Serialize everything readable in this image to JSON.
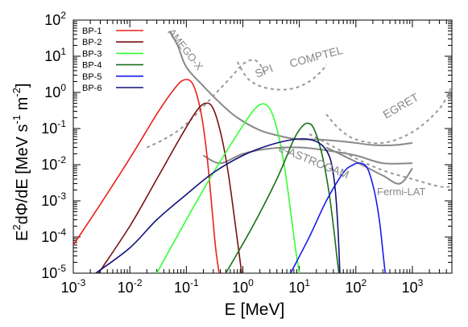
{
  "chart_data": {
    "type": "line",
    "xlabel": "E [MeV]",
    "ylabel_parts": [
      "E",
      "2",
      "dΦ/dE [MeV s",
      "-1",
      " m",
      "-2",
      "]"
    ],
    "xscale": "log",
    "yscale": "log",
    "xlim": [
      0.001,
      5000
    ],
    "ylim": [
      1e-05,
      100
    ],
    "x_ticks": [
      {
        "base": "10",
        "exp": "-3",
        "value": 0.001
      },
      {
        "base": "10",
        "exp": "-2",
        "value": 0.01
      },
      {
        "base": "10",
        "exp": "-1",
        "value": 0.1
      },
      {
        "base": "10",
        "exp": "0",
        "value": 1
      },
      {
        "base": "10",
        "exp": "1",
        "value": 10
      },
      {
        "base": "10",
        "exp": "2",
        "value": 100
      },
      {
        "base": "10",
        "exp": "3",
        "value": 1000
      }
    ],
    "y_ticks": [
      {
        "base": "10",
        "exp": "-5",
        "value": 1e-05
      },
      {
        "base": "10",
        "exp": "-4",
        "value": 0.0001
      },
      {
        "base": "10",
        "exp": "-3",
        "value": 0.001
      },
      {
        "base": "10",
        "exp": "-2",
        "value": 0.01
      },
      {
        "base": "10",
        "exp": "-1",
        "value": 0.1
      },
      {
        "base": "10",
        "exp": "0",
        "value": 1
      },
      {
        "base": "10",
        "exp": "1",
        "value": 10
      },
      {
        "base": "10",
        "exp": "2",
        "value": 100
      }
    ],
    "legend_position": "top-left",
    "series": [
      {
        "name": "BP-1",
        "color": "#e8221a",
        "x": [
          0.001,
          0.003,
          0.01,
          0.03,
          0.06,
          0.09,
          0.13,
          0.18,
          0.23,
          0.28,
          0.33,
          0.38
        ],
        "y": [
          6e-05,
          0.0008,
          0.015,
          0.25,
          1.2,
          2.2,
          1.7,
          0.3,
          0.02,
          0.0008,
          5e-05,
          1e-05
        ]
      },
      {
        "name": "BP-2",
        "color": "#7a1010",
        "x": [
          0.0028,
          0.01,
          0.03,
          0.08,
          0.15,
          0.22,
          0.3,
          0.42,
          0.55,
          0.7,
          0.85,
          0.95
        ],
        "y": [
          1e-05,
          0.0002,
          0.004,
          0.06,
          0.3,
          0.5,
          0.35,
          0.06,
          0.006,
          0.0004,
          4e-05,
          1e-05
        ]
      },
      {
        "name": "BP-3",
        "color": "#33ff33",
        "x": [
          0.03,
          0.1,
          0.3,
          0.8,
          1.5,
          2.2,
          3.0,
          4.0,
          5.5,
          7.0,
          8.5,
          10.0
        ],
        "y": [
          1e-05,
          0.0003,
          0.006,
          0.07,
          0.3,
          0.48,
          0.35,
          0.1,
          0.008,
          0.0005,
          5e-05,
          1e-05
        ]
      },
      {
        "name": "BP-4",
        "color": "#1a6e1a",
        "x": [
          0.5,
          1.5,
          4.0,
          8.0,
          11.0,
          14.0,
          18.0,
          25.0,
          33.0,
          40.0,
          46.0,
          50.0
        ],
        "y": [
          1e-05,
          0.0002,
          0.004,
          0.05,
          0.11,
          0.14,
          0.1,
          0.02,
          0.002,
          0.0002,
          3e-05,
          1e-05
        ]
      },
      {
        "name": "BP-5",
        "color": "#1a1aee",
        "x": [
          7.0,
          15.0,
          30.0,
          60.0,
          90.0,
          120.0,
          160.0,
          210.0,
          260.0,
          300.0,
          330.0
        ],
        "y": [
          1e-05,
          0.0001,
          0.001,
          0.006,
          0.01,
          0.011,
          0.008,
          0.002,
          0.0003,
          4e-05,
          1e-05
        ]
      },
      {
        "name": "BP-6",
        "color": "#10107a",
        "x": [
          0.0025,
          0.01,
          0.03,
          0.1,
          0.3,
          1.0,
          3.0,
          8.0,
          15.0,
          25.0,
          35.0,
          42.0,
          48.0,
          52.0
        ],
        "y": [
          1e-05,
          5e-05,
          0.0003,
          0.0015,
          0.006,
          0.018,
          0.035,
          0.05,
          0.05,
          0.035,
          0.015,
          0.003,
          0.0002,
          1e-05
        ]
      }
    ],
    "instruments": [
      {
        "label": "AMEGO-X",
        "style": "solid",
        "color": "#888888",
        "x": [
          0.05,
          0.07,
          0.1,
          0.2,
          0.4,
          0.8,
          2,
          5,
          10,
          20,
          50,
          100,
          200,
          500,
          1000
        ],
        "y": [
          50,
          20,
          5,
          1.5,
          0.5,
          0.2,
          0.09,
          0.06,
          0.05,
          0.05,
          0.045,
          0.04,
          0.035,
          0.035,
          0.04
        ]
      },
      {
        "label": "e-ASTROGAM",
        "style": "solid",
        "color": "#888888",
        "x": [
          0.2,
          0.4,
          1,
          3,
          10,
          30,
          100,
          300,
          1000
        ],
        "y": [
          0.018,
          0.011,
          0.02,
          0.028,
          0.03,
          0.025,
          0.018,
          0.011,
          0.011
        ]
      },
      {
        "label": "Fermi-LAT",
        "style": "solid",
        "color": "#888888",
        "x": [
          30,
          100,
          300,
          600,
          1000
        ],
        "y": [
          0.03,
          0.012,
          0.005,
          0.003,
          0.008
        ]
      },
      {
        "label": "SPI",
        "style": "dashed",
        "color": "#999999",
        "x": [
          0.02,
          0.04,
          0.08,
          0.15,
          0.3,
          0.6,
          1.0,
          1.5,
          2.0,
          2.5
        ],
        "y": [
          0.03,
          0.05,
          0.1,
          0.25,
          0.8,
          2.5,
          6,
          8,
          6,
          3
        ]
      },
      {
        "label": "COMPTEL",
        "style": "dashed",
        "color": "#999999",
        "x": [
          0.8,
          1.2,
          2,
          4,
          8,
          15,
          25,
          30
        ],
        "y": [
          7,
          2.5,
          1.5,
          1.2,
          1.3,
          2,
          4,
          6
        ]
      },
      {
        "label": "EGRET",
        "style": "dashed",
        "color": "#999999",
        "x": [
          30,
          50,
          100,
          300,
          1000,
          3000,
          5000
        ],
        "y": [
          0.25,
          0.1,
          0.05,
          0.04,
          0.08,
          0.35,
          1.5
        ]
      },
      {
        "label": "",
        "style": "dashed",
        "color": "#999999",
        "x": [
          15,
          30,
          100,
          300,
          1000,
          3000,
          5000
        ],
        "y": [
          0.07,
          0.04,
          0.015,
          0.007,
          0.004,
          0.0025,
          0.0025
        ]
      }
    ]
  }
}
